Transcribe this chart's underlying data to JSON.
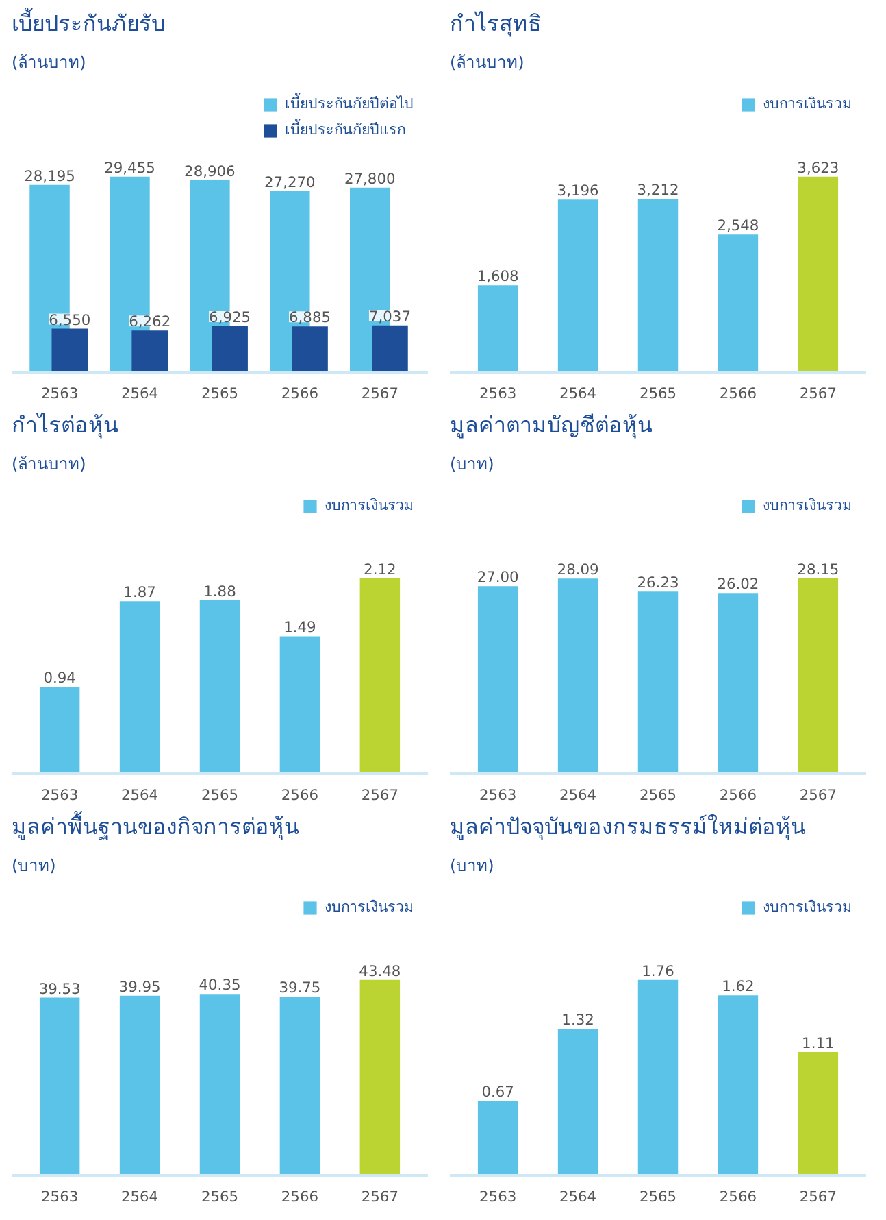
{
  "chart_data": [
    {
      "type": "bar",
      "title": "เบี้ยประกันภัยรับ",
      "subtitle": "(ล้านบาท)",
      "categories": [
        "2563",
        "2564",
        "2565",
        "2566",
        "2567"
      ],
      "legend": "top right",
      "series": [
        {
          "name": "เบี้ยประกันภัยปีต่อไป",
          "colors": [
            "#5bc3e8",
            "#5bc3e8",
            "#5bc3e8",
            "#5bc3e8",
            "#5bc3e8"
          ],
          "values": [
            28195,
            29455,
            28906,
            27270,
            27800
          ],
          "value_labels": [
            "28,195",
            "29,455",
            "28,906",
            "27,270",
            "27,800"
          ]
        },
        {
          "name": "เบี้ยประกันภัยปีแรก",
          "colors": [
            "#1f4e99",
            "#1f4e99",
            "#1f4e99",
            "#1f4e99",
            "#1f4e99"
          ],
          "values": [
            6550,
            6262,
            6925,
            6885,
            7037
          ],
          "value_labels": [
            "6,550",
            "6,262",
            "6,925",
            "6,885",
            "7,037"
          ]
        }
      ]
    },
    {
      "type": "bar",
      "title": "กำไรสุทธิ",
      "subtitle": "(ล้านบาท)",
      "categories": [
        "2563",
        "2564",
        "2565",
        "2566",
        "2567"
      ],
      "legend": "top right",
      "series": [
        {
          "name": "งบการเงินรวม",
          "colors": [
            "#5bc3e8",
            "#5bc3e8",
            "#5bc3e8",
            "#5bc3e8",
            "#bcd432"
          ],
          "values": [
            1608,
            3196,
            3212,
            2548,
            3623
          ],
          "value_labels": [
            "1,608",
            "3,196",
            "3,212",
            "2,548",
            "3,623"
          ]
        }
      ]
    },
    {
      "type": "bar",
      "title": "กำไรต่อหุ้น",
      "subtitle": "(ล้านบาท)",
      "categories": [
        "2563",
        "2564",
        "2565",
        "2566",
        "2567"
      ],
      "legend": "top right",
      "series": [
        {
          "name": "งบการเงินรวม",
          "colors": [
            "#5bc3e8",
            "#5bc3e8",
            "#5bc3e8",
            "#5bc3e8",
            "#bcd432"
          ],
          "values": [
            0.94,
            1.87,
            1.88,
            1.49,
            2.12
          ],
          "value_labels": [
            "0.94",
            "1.87",
            "1.88",
            "1.49",
            "2.12"
          ]
        }
      ]
    },
    {
      "type": "bar",
      "title": "มูลค่าตามบัญชีต่อหุ้น",
      "subtitle": "(บาท)",
      "categories": [
        "2563",
        "2564",
        "2565",
        "2566",
        "2567"
      ],
      "legend": "top right",
      "series": [
        {
          "name": "งบการเงินรวม",
          "colors": [
            "#5bc3e8",
            "#5bc3e8",
            "#5bc3e8",
            "#5bc3e8",
            "#bcd432"
          ],
          "values": [
            27.0,
            28.09,
            26.23,
            26.02,
            28.15
          ],
          "value_labels": [
            "27.00",
            "28.09",
            "26.23",
            "26.02",
            "28.15"
          ]
        }
      ]
    },
    {
      "type": "bar",
      "title": "มูลค่าพื้นฐานของกิจการต่อหุ้น",
      "subtitle": "(บาท)",
      "categories": [
        "2563",
        "2564",
        "2565",
        "2566",
        "2567"
      ],
      "legend": "top right",
      "series": [
        {
          "name": "งบการเงินรวม",
          "colors": [
            "#5bc3e8",
            "#5bc3e8",
            "#5bc3e8",
            "#5bc3e8",
            "#bcd432"
          ],
          "values": [
            39.53,
            39.95,
            40.35,
            39.75,
            43.48
          ],
          "value_labels": [
            "39.53",
            "39.95",
            "40.35",
            "39.75",
            "43.48"
          ]
        }
      ]
    },
    {
      "type": "bar",
      "title": "มูลค่าปัจจุบันของกรมธรรม์ใหม่ต่อหุ้น",
      "subtitle": "(บาท)",
      "categories": [
        "2563",
        "2564",
        "2565",
        "2566",
        "2567"
      ],
      "legend": "top right",
      "series": [
        {
          "name": "งบการเงินรวม",
          "colors": [
            "#5bc3e8",
            "#5bc3e8",
            "#5bc3e8",
            "#5bc3e8",
            "#bcd432"
          ],
          "values": [
            0.67,
            1.32,
            1.76,
            1.62,
            1.11
          ],
          "value_labels": [
            "0.67",
            "1.32",
            "1.76",
            "1.62",
            "1.11"
          ]
        }
      ]
    }
  ]
}
